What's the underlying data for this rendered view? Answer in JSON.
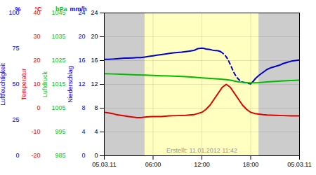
{
  "chart_data": {
    "type": "line",
    "annotation": "Erstellt: 11.01.2012 11:42",
    "xlim": [
      0,
      24
    ],
    "ylim": [
      0,
      24
    ],
    "xticks": [
      {
        "value": 0,
        "label": "05.03.11"
      },
      {
        "value": 6,
        "label": "06:00"
      },
      {
        "value": 12,
        "label": "12:00"
      },
      {
        "value": 18,
        "label": "18:00"
      },
      {
        "value": 24,
        "label": "05.03.11"
      }
    ],
    "yticks": [
      0,
      4,
      8,
      12,
      16,
      20,
      24
    ],
    "grid": true,
    "regions": [
      {
        "x": [
          0,
          5
        ],
        "color": "#cccccc"
      },
      {
        "x": [
          19,
          24
        ],
        "color": "#cccccc"
      },
      {
        "x": [
          5,
          19
        ],
        "color": "#ffffc0"
      }
    ],
    "series": [
      {
        "color": "#0000cc",
        "line_style": "solid",
        "x": [
          0,
          0.5,
          1,
          1.5,
          2,
          2.5,
          3,
          3.5,
          4,
          4.5,
          5,
          5.5,
          6,
          6.5,
          7,
          7.5,
          8,
          8.5,
          9,
          9.5,
          10,
          10.5,
          11,
          11.2,
          11.5,
          12,
          12.2,
          12.5,
          13,
          13.3,
          13.5,
          14,
          14.3
        ],
        "values": [
          16.2,
          16.2,
          16.25,
          16.3,
          16.35,
          16.4,
          16.4,
          16.45,
          16.5,
          16.5,
          16.6,
          16.7,
          16.8,
          16.9,
          17.0,
          17.1,
          17.2,
          17.3,
          17.35,
          17.4,
          17.5,
          17.6,
          17.7,
          17.8,
          18.0,
          18.1,
          18.05,
          17.95,
          17.85,
          17.75,
          17.7,
          17.65,
          17.5
        ]
      },
      {
        "color": "#0000cc",
        "line_style": "dashed",
        "x": [
          14.3,
          14.8,
          15.2,
          15.6,
          16.0,
          16.4,
          16.8,
          17.2,
          17.6,
          18.0
        ],
        "values": [
          17.5,
          17.0,
          16.2,
          15.0,
          13.8,
          13.0,
          12.5,
          12.3,
          12.2,
          12.1
        ]
      },
      {
        "color": "#0000cc",
        "line_style": "solid",
        "x": [
          18.0,
          18.3,
          18.6,
          19.0,
          19.5,
          20.0,
          20.5,
          21.0,
          21.5,
          22.0,
          22.5,
          23.0,
          23.5,
          24.0
        ],
        "values": [
          12.1,
          12.5,
          13.0,
          13.5,
          14.0,
          14.5,
          14.8,
          15.0,
          15.2,
          15.5,
          15.7,
          15.9,
          16.0,
          16.1
        ]
      },
      {
        "color": "#00bb00",
        "line_style": "solid",
        "x": [
          0,
          1,
          2,
          3,
          4,
          5,
          6,
          7,
          8,
          9,
          10,
          11,
          12,
          13,
          14,
          14.5,
          15,
          15.5,
          16,
          16.5,
          17,
          17.5,
          18,
          19,
          20,
          21,
          22,
          23,
          24
        ],
        "values": [
          13.8,
          13.75,
          13.7,
          13.65,
          13.6,
          13.55,
          13.5,
          13.45,
          13.4,
          13.35,
          13.3,
          13.2,
          13.1,
          13.0,
          12.9,
          12.85,
          12.8,
          12.7,
          12.55,
          12.4,
          12.35,
          12.3,
          12.25,
          12.3,
          12.4,
          12.5,
          12.6,
          12.65,
          12.7
        ]
      },
      {
        "color": "#dd0000",
        "line_style": "solid",
        "x": [
          0,
          0.5,
          1,
          1.5,
          2,
          2.5,
          3,
          3.5,
          4,
          4.5,
          5,
          5.5,
          6,
          6.5,
          7,
          7.5,
          8,
          9,
          10,
          11,
          11.5,
          12,
          12.5,
          13,
          13.5,
          14,
          14.5,
          15,
          15.5,
          16,
          16.5,
          17,
          17.5,
          18,
          18.5,
          19,
          19.5,
          20,
          21,
          22,
          23,
          24
        ],
        "values": [
          7.3,
          7.2,
          7.1,
          6.9,
          6.8,
          6.7,
          6.6,
          6.5,
          6.4,
          6.4,
          6.5,
          6.55,
          6.6,
          6.6,
          6.6,
          6.65,
          6.7,
          6.75,
          6.8,
          6.9,
          7.1,
          7.3,
          7.8,
          8.5,
          9.5,
          10.5,
          11.5,
          12.0,
          11.5,
          10.5,
          9.5,
          8.5,
          7.8,
          7.3,
          7.1,
          7.0,
          6.9,
          6.85,
          6.8,
          6.75,
          6.7,
          6.7
        ]
      }
    ],
    "extra_axes": [
      {
        "title": "%",
        "label": "Luftfeuchtigkeit",
        "color": "#0000ff",
        "ylim": [
          0,
          100
        ],
        "yticks": [
          0,
          25,
          50,
          75,
          100
        ]
      },
      {
        "title": "°C",
        "label": "Temperatur",
        "color": "#ff0000",
        "ylim": [
          -20,
          40
        ],
        "yticks": [
          -20,
          -10,
          0,
          10,
          20,
          30,
          40
        ]
      },
      {
        "title": "hPa",
        "label": "Luftdruck",
        "color": "#00cc00",
        "ylim": [
          985,
          1045
        ],
        "yticks": [
          985,
          995,
          1005,
          1015,
          1025,
          1035,
          1045
        ]
      },
      {
        "title": "mm/h",
        "label": "Niederschlag",
        "color": "#0000ff",
        "ylim": [
          0,
          24
        ],
        "yticks": [
          0,
          4,
          8,
          12,
          16,
          20,
          24
        ]
      }
    ]
  }
}
